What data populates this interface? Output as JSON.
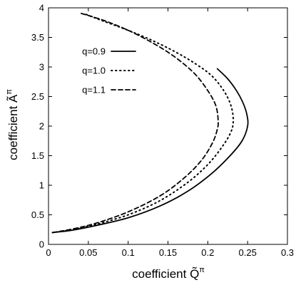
{
  "chart_data": {
    "type": "line",
    "title": "",
    "xlabel": "coefficient Q̃",
    "xlabel_sup": "π",
    "ylabel": "coefficient Ã",
    "ylabel_sup": "π",
    "xlim": [
      0,
      0.3
    ],
    "ylim": [
      0,
      4
    ],
    "x_ticks": [
      0,
      0.05,
      0.1,
      0.15,
      0.2,
      0.25,
      0.3
    ],
    "x_tick_labels": [
      "0",
      "0.05",
      "0.1",
      "0.15",
      "0.2",
      "0.25",
      "0.3"
    ],
    "y_ticks": [
      0,
      0.5,
      1,
      1.5,
      2,
      2.5,
      3,
      3.5,
      4
    ],
    "y_tick_labels": [
      "0",
      "0.5",
      "1",
      "1.5",
      "2",
      "2.5",
      "3",
      "3.5",
      "4"
    ],
    "grid": false,
    "legend_position": "top-left",
    "series": [
      {
        "name": "q=0.9",
        "style": "solid",
        "points": [
          [
            0.005,
            0.2
          ],
          [
            0.03,
            0.24
          ],
          [
            0.06,
            0.32
          ],
          [
            0.1,
            0.45
          ],
          [
            0.14,
            0.65
          ],
          [
            0.175,
            0.9
          ],
          [
            0.205,
            1.2
          ],
          [
            0.228,
            1.5
          ],
          [
            0.243,
            1.75
          ],
          [
            0.25,
            2.0
          ],
          [
            0.249,
            2.2
          ],
          [
            0.244,
            2.4
          ],
          [
            0.236,
            2.6
          ],
          [
            0.225,
            2.8
          ],
          [
            0.212,
            2.97
          ]
        ]
      },
      {
        "name": "q=1.0",
        "style": "dotted",
        "points": [
          [
            0.005,
            0.2
          ],
          [
            0.03,
            0.25
          ],
          [
            0.06,
            0.34
          ],
          [
            0.1,
            0.5
          ],
          [
            0.14,
            0.74
          ],
          [
            0.175,
            1.05
          ],
          [
            0.2,
            1.35
          ],
          [
            0.218,
            1.65
          ],
          [
            0.229,
            1.9
          ],
          [
            0.232,
            2.1
          ],
          [
            0.229,
            2.35
          ],
          [
            0.22,
            2.6
          ],
          [
            0.205,
            2.85
          ],
          [
            0.185,
            3.05
          ],
          [
            0.16,
            3.25
          ],
          [
            0.13,
            3.45
          ],
          [
            0.1,
            3.62
          ],
          [
            0.07,
            3.77
          ],
          [
            0.045,
            3.9
          ]
        ]
      },
      {
        "name": "q=1.1",
        "style": "dashed",
        "points": [
          [
            0.005,
            0.2
          ],
          [
            0.03,
            0.26
          ],
          [
            0.06,
            0.36
          ],
          [
            0.1,
            0.55
          ],
          [
            0.14,
            0.82
          ],
          [
            0.17,
            1.12
          ],
          [
            0.192,
            1.42
          ],
          [
            0.206,
            1.72
          ],
          [
            0.212,
            1.95
          ],
          [
            0.213,
            2.1
          ],
          [
            0.21,
            2.35
          ],
          [
            0.2,
            2.6
          ],
          [
            0.186,
            2.85
          ],
          [
            0.17,
            3.05
          ],
          [
            0.15,
            3.25
          ],
          [
            0.125,
            3.45
          ],
          [
            0.1,
            3.62
          ],
          [
            0.075,
            3.76
          ],
          [
            0.055,
            3.85
          ],
          [
            0.04,
            3.91
          ]
        ]
      }
    ],
    "colors": {
      "line": "#000000",
      "axis": "#000000",
      "background": "#ffffff"
    }
  }
}
